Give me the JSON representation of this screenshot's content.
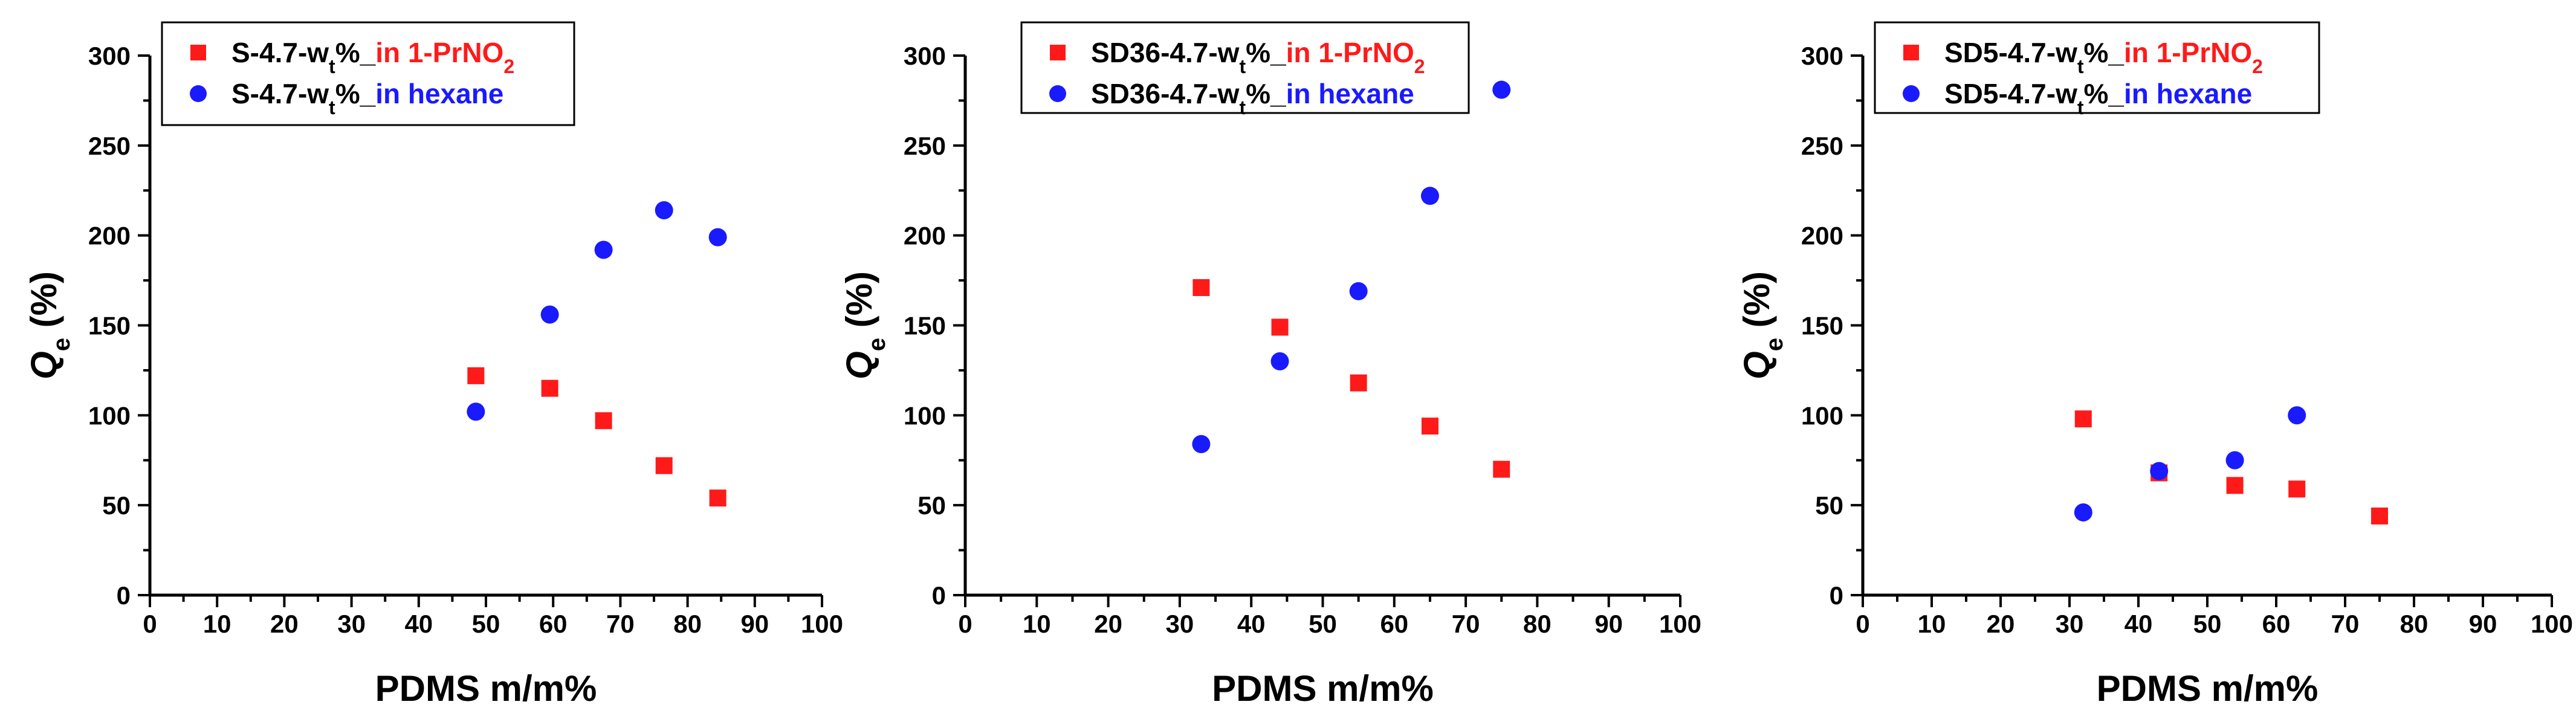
{
  "colors": {
    "red_series": "#ff1a1a",
    "blue_series": "#1a1aff",
    "axis": "#000000"
  },
  "chart_data": [
    {
      "type": "scatter",
      "title": "",
      "xlabel": "PDMS m/m%",
      "ylabel": {
        "main": "Q",
        "sub": "e",
        "unit": "(%)"
      },
      "xlim": [
        0,
        100
      ],
      "ylim": [
        0,
        300
      ],
      "xticks": [
        0,
        10,
        20,
        30,
        40,
        50,
        60,
        70,
        80,
        90,
        100
      ],
      "yticks": [
        0,
        50,
        100,
        150,
        200,
        250,
        300
      ],
      "legend_position": "top-left",
      "series": [
        {
          "name": "S-4.7-wt%_in 1-PrNO2",
          "legend": {
            "prefix": "S-4.7-w",
            "sub_t": "t",
            "mid": "%_",
            "suffix": "in 1-PrNO",
            "sub_2": "2"
          },
          "marker": "square",
          "color": "#ff1a1a",
          "x": [
            48.5,
            59.5,
            67.5,
            76.5,
            84.5
          ],
          "y": [
            122,
            115,
            97,
            72,
            54
          ]
        },
        {
          "name": "S-4.7-wt%_in hexane",
          "legend": {
            "prefix": "S-4.7-w",
            "sub_t": "t",
            "mid": "%_",
            "suffix": "in hexane",
            "sub_2": ""
          },
          "marker": "circle",
          "color": "#1a1aff",
          "x": [
            48.5,
            59.5,
            67.5,
            76.5,
            84.5
          ],
          "y": [
            102,
            156,
            192,
            214,
            199
          ]
        }
      ]
    },
    {
      "type": "scatter",
      "title": "",
      "xlabel": "PDMS m/m%",
      "ylabel": {
        "main": "Q",
        "sub": "e",
        "unit": "(%)"
      },
      "xlim": [
        0,
        100
      ],
      "ylim": [
        0,
        300
      ],
      "xticks": [
        0,
        10,
        20,
        30,
        40,
        50,
        60,
        70,
        80,
        90,
        100
      ],
      "yticks": [
        0,
        50,
        100,
        150,
        200,
        250,
        300
      ],
      "legend_position": "top-left",
      "series": [
        {
          "name": "SD36-4.7-wt%_in 1-PrNO2",
          "legend": {
            "prefix": "SD36-4.7-w",
            "sub_t": "t",
            "mid": "%_",
            "suffix": "in 1-PrNO",
            "sub_2": "2"
          },
          "marker": "square",
          "color": "#ff1a1a",
          "x": [
            33,
            44,
            55,
            65,
            75
          ],
          "y": [
            171,
            149,
            118,
            94,
            70
          ]
        },
        {
          "name": "SD36-4.7-wt%_in hexane",
          "legend": {
            "prefix": "SD36-4.7-w",
            "sub_t": "t",
            "mid": "%_",
            "suffix": "in hexane",
            "sub_2": ""
          },
          "marker": "circle",
          "color": "#1a1aff",
          "x": [
            33,
            44,
            55,
            65,
            75
          ],
          "y": [
            84,
            130,
            169,
            222,
            281
          ]
        }
      ]
    },
    {
      "type": "scatter",
      "title": "",
      "xlabel": "PDMS m/m%",
      "ylabel": {
        "main": "Q",
        "sub": "e",
        "unit": "(%)"
      },
      "xlim": [
        0,
        100
      ],
      "ylim": [
        0,
        300
      ],
      "xticks": [
        0,
        10,
        20,
        30,
        40,
        50,
        60,
        70,
        80,
        90,
        100
      ],
      "yticks": [
        0,
        50,
        100,
        150,
        200,
        250,
        300
      ],
      "legend_position": "top-left",
      "series": [
        {
          "name": "SD5-4.7-wt%_in 1-PrNO2",
          "legend": {
            "prefix": "SD5-4.7-w",
            "sub_t": "t",
            "mid": "%_",
            "suffix": "in 1-PrNO",
            "sub_2": "2"
          },
          "marker": "square",
          "color": "#ff1a1a",
          "x": [
            32,
            43,
            54,
            63,
            75
          ],
          "y": [
            98,
            68,
            61,
            59,
            44
          ]
        },
        {
          "name": "SD5-4.7-wt%_in hexane",
          "legend": {
            "prefix": "SD5-4.7-w",
            "sub_t": "t",
            "mid": "%_",
            "suffix": "in hexane",
            "sub_2": ""
          },
          "marker": "circle",
          "color": "#1a1aff",
          "x": [
            32,
            43,
            54,
            63
          ],
          "y": [
            46,
            69,
            75,
            100
          ]
        }
      ]
    }
  ]
}
